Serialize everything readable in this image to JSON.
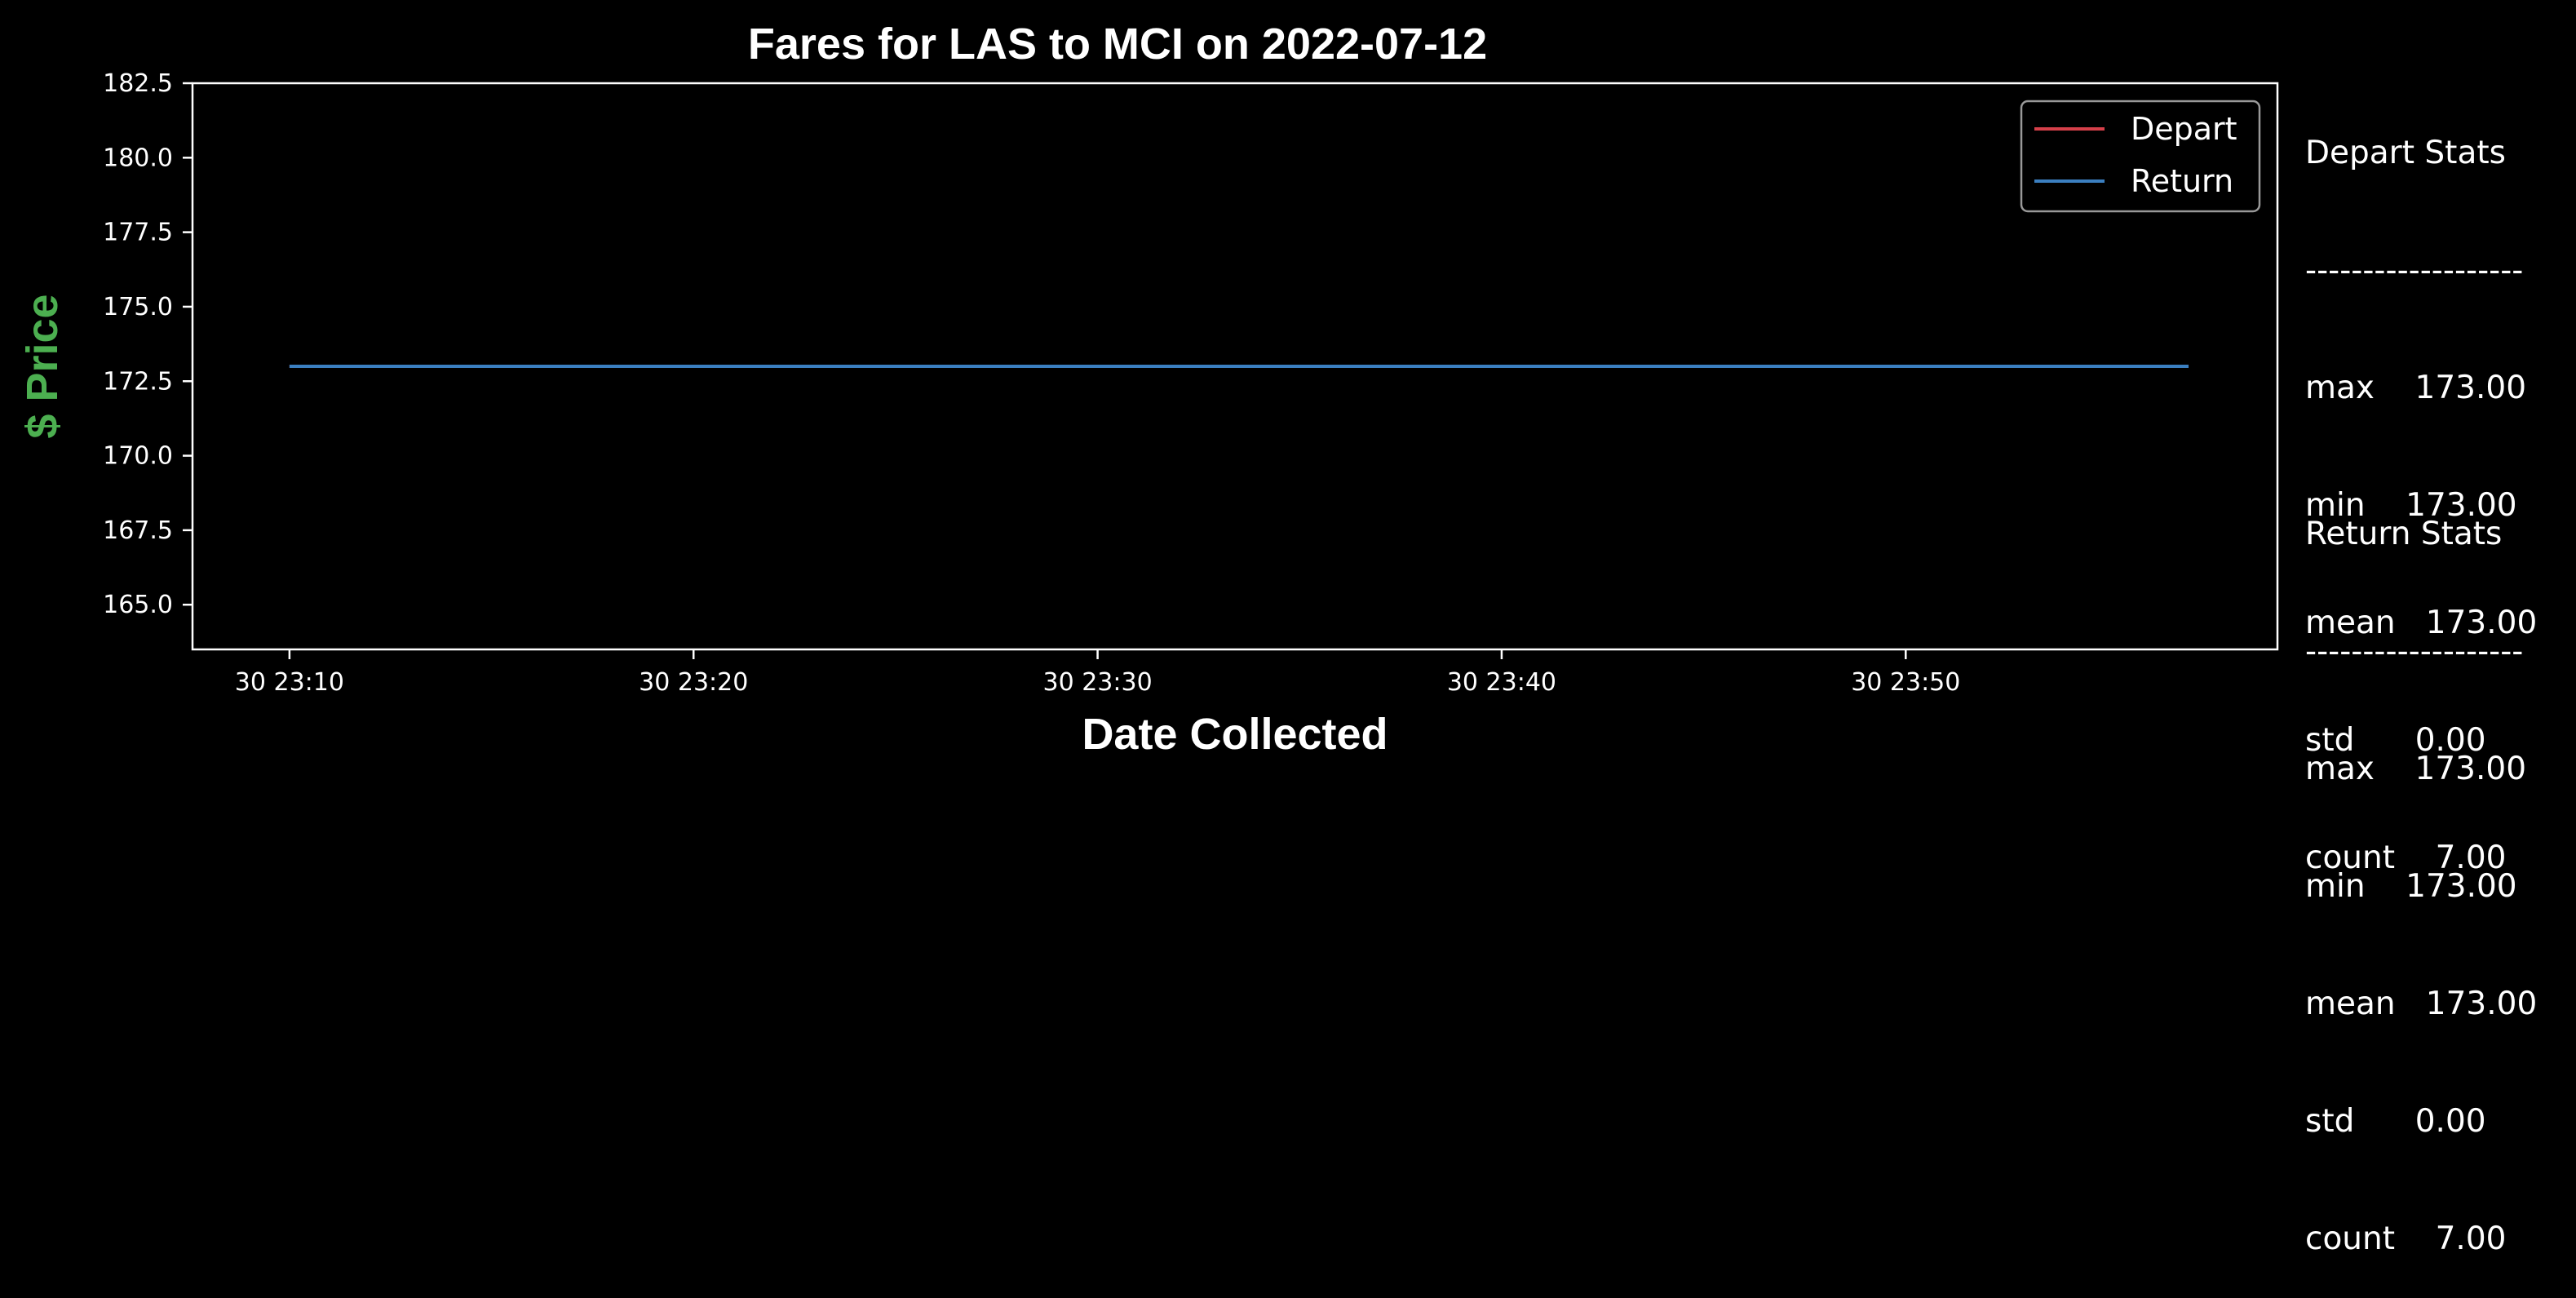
{
  "chart_data": {
    "type": "line",
    "title": "Fares for LAS to MCI on 2022-07-12",
    "xlabel": "Date Collected",
    "ylabel": "$ Price",
    "ylim": [
      163.5,
      182.5
    ],
    "y_ticks": [
      165.0,
      167.5,
      170.0,
      172.5,
      175.0,
      177.5,
      180.0,
      182.5
    ],
    "y_tick_labels": [
      "165.0",
      "167.5",
      "170.0",
      "172.5",
      "175.0",
      "177.5",
      "180.0",
      "182.5"
    ],
    "xlim_minutes": [
      7.6,
      59.2
    ],
    "x_ticks_minutes": [
      10,
      20,
      30,
      40,
      50
    ],
    "x_tick_labels": [
      "30 23:10",
      "30 23:20",
      "30 23:30",
      "30 23:40",
      "30 23:50"
    ],
    "legend_position": "top-right",
    "grid": false,
    "series": [
      {
        "name": "Depart",
        "color": "#d6404a",
        "x_minutes": [
          10,
          17.8,
          25.6,
          33.4,
          41.2,
          49.0,
          57.0
        ],
        "values": [
          173.0,
          173.0,
          173.0,
          173.0,
          173.0,
          173.0,
          173.0
        ]
      },
      {
        "name": "Return",
        "color": "#3b7fc0",
        "x_minutes": [
          10,
          17.8,
          25.6,
          33.4,
          41.2,
          49.0,
          57.0
        ],
        "values": [
          173.0,
          173.0,
          173.0,
          173.0,
          173.0,
          173.0,
          173.0
        ]
      }
    ]
  },
  "colors": {
    "background": "#000000",
    "axes": "#ffffff",
    "ylabel": "#4caf50"
  },
  "depart_stats": {
    "title": "Depart Stats",
    "divider": "-------------------",
    "rows": [
      "max    173.00",
      "min    173.00",
      "mean   173.00",
      "std      0.00",
      "count    7.00"
    ]
  },
  "return_stats": {
    "title": "Return Stats",
    "divider": "-------------------",
    "rows": [
      "max    173.00",
      "min    173.00",
      "mean   173.00",
      "std      0.00",
      "count    7.00"
    ]
  }
}
